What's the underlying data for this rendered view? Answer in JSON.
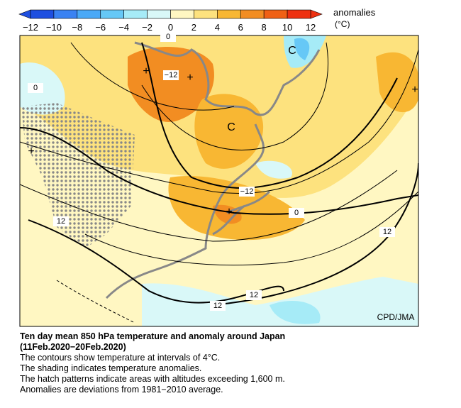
{
  "colorbar": {
    "title": "anomalies",
    "unit": "(°C)",
    "ticks": [
      "−12",
      "−10",
      "−8",
      "−6",
      "−4",
      "−2",
      "0",
      "2",
      "4",
      "6",
      "8",
      "10",
      "12"
    ],
    "colors": [
      "#1e4fe0",
      "#3a82f2",
      "#4aa9f7",
      "#66c8f6",
      "#a6ebf7",
      "#d9f8f8",
      "#fff7c2",
      "#fde27e",
      "#f8b733",
      "#f28d22",
      "#f06014",
      "#ee3010"
    ]
  },
  "map": {
    "contour_labels": [
      "0",
      "−12",
      "0",
      "−12",
      "0",
      "12",
      "12",
      "12",
      "12"
    ],
    "markers": [
      "+",
      "+",
      "+",
      "+",
      "+",
      "C",
      "C"
    ],
    "credit": "CPD/JMA"
  },
  "caption": {
    "title": "Ten day mean 850 hPa temperature and anomaly around Japan",
    "period": "(11Feb.2020−20Feb.2020)",
    "lines": [
      "The contours show temperature at intervals of 4°C.",
      "The shading indicates temperature anomalies.",
      "The hatch patterns indicate areas with altitudes exceeding 1,600 m.",
      "Anomalies are deviations from 1981−2010 average."
    ]
  }
}
